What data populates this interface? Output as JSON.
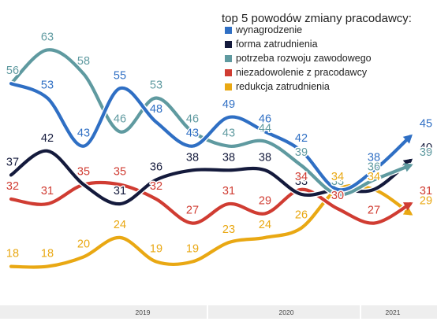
{
  "chart_data": {
    "type": "line",
    "title": "top 5 powodów zmiany pracodawcy:",
    "x_axis_labels": [
      "2019",
      "2020",
      "2021"
    ],
    "ylim": [
      15,
      66
    ],
    "legend_position": "top-right",
    "grid": false,
    "series": [
      {
        "name": "wynagrodzenie",
        "color": "#2f6fc4",
        "points": [
          [
            0,
            56
          ],
          [
            1,
            53
          ],
          [
            2,
            43
          ],
          [
            3,
            55
          ],
          [
            4,
            48
          ],
          [
            5,
            43
          ],
          [
            6,
            49
          ],
          [
            7,
            46
          ],
          [
            8,
            42
          ],
          [
            9,
            34
          ],
          [
            10,
            38
          ],
          [
            11,
            45
          ]
        ]
      },
      {
        "name": "forma zatrudnienia",
        "color": "#141a3c",
        "points": [
          [
            0,
            37
          ],
          [
            1,
            42
          ],
          [
            2,
            35
          ],
          [
            3,
            31
          ],
          [
            4,
            36
          ],
          [
            5,
            38
          ],
          [
            6,
            38
          ],
          [
            7,
            38
          ],
          [
            8,
            33
          ],
          [
            9,
            34
          ],
          [
            10,
            34
          ],
          [
            11,
            40
          ]
        ]
      },
      {
        "name": "potrzeba rozwoju zawodowego",
        "color": "#5f9aa0",
        "points": [
          [
            0,
            56
          ],
          [
            1,
            63
          ],
          [
            2,
            58
          ],
          [
            3,
            46
          ],
          [
            4,
            53
          ],
          [
            5,
            46
          ],
          [
            6,
            43
          ],
          [
            7,
            44
          ],
          [
            8,
            39
          ],
          [
            9,
            33
          ],
          [
            10,
            36
          ],
          [
            11,
            39
          ]
        ]
      },
      {
        "name": "niezadowolenie z pracodawcy",
        "color": "#d03c32",
        "points": [
          [
            0,
            32
          ],
          [
            1,
            31
          ],
          [
            2,
            35
          ],
          [
            3,
            35
          ],
          [
            4,
            32
          ],
          [
            5,
            27
          ],
          [
            6,
            31
          ],
          [
            7,
            29
          ],
          [
            8,
            34
          ],
          [
            9,
            30
          ],
          [
            10,
            27
          ],
          [
            11,
            31
          ]
        ]
      },
      {
        "name": "redukcja zatrudnienia",
        "color": "#e9a813",
        "points": [
          [
            0,
            18
          ],
          [
            1,
            18
          ],
          [
            2,
            20
          ],
          [
            3,
            24
          ],
          [
            4,
            19
          ],
          [
            5,
            19
          ],
          [
            6,
            23
          ],
          [
            7,
            24
          ],
          [
            8,
            26
          ],
          [
            9,
            34
          ],
          [
            10,
            34
          ],
          [
            11,
            29
          ]
        ]
      }
    ]
  }
}
